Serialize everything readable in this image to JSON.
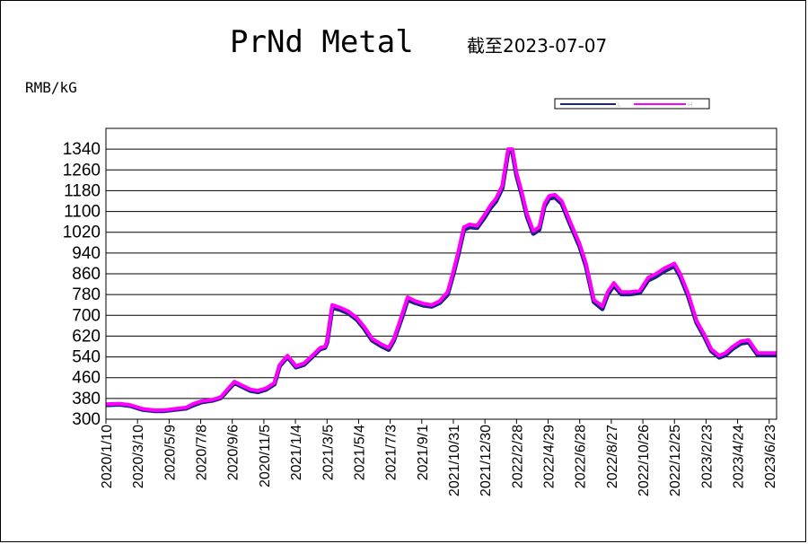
{
  "header": {
    "title": "PrNd Metal",
    "subtitle": "截至2023-07-07",
    "unit": "RMB/kG"
  },
  "colors": {
    "low": "#1a237e",
    "high": "#ff00ff",
    "grid": "#000000"
  },
  "chart_data": {
    "type": "line",
    "ylim": [
      300,
      1340
    ],
    "yticks": [
      300,
      380,
      460,
      540,
      620,
      700,
      780,
      860,
      940,
      1020,
      1100,
      1180,
      1260,
      1340
    ],
    "xlim": [
      "2020-01-10",
      "2023-07-07"
    ],
    "xticks": [
      "2020/1/10",
      "2020/3/10",
      "2020/5/9",
      "2020/7/8",
      "2020/9/6",
      "2020/11/5",
      "2021/1/4",
      "2021/3/5",
      "2021/5/4",
      "2021/7/3",
      "2021/9/1",
      "2021/10/31",
      "2021/12/30",
      "2022/2/28",
      "2022/4/29",
      "2022/6/28",
      "2022/8/27",
      "2022/10/26",
      "2022/12/25",
      "2023/2/23",
      "2023/4/24",
      "2023/6/23"
    ],
    "grid": "horizontal",
    "legend": {
      "placement": "top-right",
      "entries": [
        "L",
        "H"
      ]
    },
    "series": [
      {
        "name": "H",
        "x": [
          "2020-01-10",
          "2020-02-05",
          "2020-02-25",
          "2020-03-20",
          "2020-04-10",
          "2020-04-30",
          "2020-05-20",
          "2020-06-10",
          "2020-06-25",
          "2020-07-10",
          "2020-07-30",
          "2020-08-15",
          "2020-08-30",
          "2020-09-10",
          "2020-09-25",
          "2020-10-10",
          "2020-10-25",
          "2020-11-10",
          "2020-11-25",
          "2020-12-05",
          "2020-12-20",
          "2021-01-05",
          "2021-01-20",
          "2021-02-05",
          "2021-02-20",
          "2021-03-01",
          "2021-03-05",
          "2021-03-15",
          "2021-03-30",
          "2021-04-15",
          "2021-05-01",
          "2021-05-15",
          "2021-05-30",
          "2021-06-15",
          "2021-06-30",
          "2021-07-10",
          "2021-07-25",
          "2021-08-05",
          "2021-08-20",
          "2021-09-05",
          "2021-09-20",
          "2021-10-05",
          "2021-10-20",
          "2021-10-31",
          "2021-11-10",
          "2021-11-20",
          "2021-12-01",
          "2021-12-15",
          "2021-12-30",
          "2022-01-10",
          "2022-01-20",
          "2022-02-01",
          "2022-02-12",
          "2022-02-20",
          "2022-02-28",
          "2022-03-10",
          "2022-03-20",
          "2022-04-01",
          "2022-04-12",
          "2022-04-22",
          "2022-05-01",
          "2022-05-12",
          "2022-05-25",
          "2022-06-10",
          "2022-06-28",
          "2022-07-10",
          "2022-07-25",
          "2022-08-10",
          "2022-08-20",
          "2022-09-01",
          "2022-09-15",
          "2022-10-01",
          "2022-10-20",
          "2022-11-05",
          "2022-11-20",
          "2022-12-05",
          "2022-12-25",
          "2023-01-05",
          "2023-01-20",
          "2023-02-05",
          "2023-02-20",
          "2023-03-05",
          "2023-03-20",
          "2023-04-01",
          "2023-04-15",
          "2023-04-30",
          "2023-05-15",
          "2023-06-01",
          "2023-06-15",
          "2023-06-30",
          "2023-07-07"
        ],
        "values": [
          358,
          360,
          355,
          340,
          335,
          335,
          340,
          345,
          360,
          370,
          375,
          385,
          420,
          445,
          430,
          415,
          410,
          420,
          440,
          510,
          545,
          505,
          515,
          545,
          575,
          580,
          600,
          740,
          730,
          715,
          690,
          655,
          610,
          590,
          575,
          610,
          700,
          770,
          755,
          745,
          740,
          755,
          790,
          870,
          950,
          1040,
          1050,
          1045,
          1090,
          1125,
          1150,
          1200,
          1340,
          1340,
          1250,
          1175,
          1090,
          1025,
          1040,
          1130,
          1160,
          1165,
          1140,
          1060,
          975,
          900,
          760,
          735,
          790,
          825,
          790,
          790,
          795,
          845,
          860,
          880,
          900,
          860,
          785,
          680,
          625,
          570,
          545,
          555,
          580,
          600,
          605,
          555,
          555,
          555,
          555
        ]
      },
      {
        "name": "L",
        "x": [
          "2020-01-10",
          "2020-02-05",
          "2020-02-25",
          "2020-03-20",
          "2020-04-10",
          "2020-04-30",
          "2020-05-20",
          "2020-06-10",
          "2020-06-25",
          "2020-07-10",
          "2020-07-30",
          "2020-08-15",
          "2020-08-30",
          "2020-09-10",
          "2020-09-25",
          "2020-10-10",
          "2020-10-25",
          "2020-11-10",
          "2020-11-25",
          "2020-12-05",
          "2020-12-20",
          "2021-01-05",
          "2021-01-20",
          "2021-02-05",
          "2021-02-20",
          "2021-03-01",
          "2021-03-05",
          "2021-03-15",
          "2021-03-30",
          "2021-04-15",
          "2021-05-01",
          "2021-05-15",
          "2021-05-30",
          "2021-06-15",
          "2021-06-30",
          "2021-07-10",
          "2021-07-25",
          "2021-08-05",
          "2021-08-20",
          "2021-09-05",
          "2021-09-20",
          "2021-10-05",
          "2021-10-20",
          "2021-10-31",
          "2021-11-10",
          "2021-11-20",
          "2021-12-01",
          "2021-12-15",
          "2021-12-30",
          "2022-01-10",
          "2022-01-20",
          "2022-02-01",
          "2022-02-12",
          "2022-02-20",
          "2022-02-28",
          "2022-03-10",
          "2022-03-20",
          "2022-04-01",
          "2022-04-12",
          "2022-04-22",
          "2022-05-01",
          "2022-05-12",
          "2022-05-25",
          "2022-06-10",
          "2022-06-28",
          "2022-07-10",
          "2022-07-25",
          "2022-08-10",
          "2022-08-20",
          "2022-09-01",
          "2022-09-15",
          "2022-10-01",
          "2022-10-20",
          "2022-11-05",
          "2022-11-20",
          "2022-12-05",
          "2022-12-25",
          "2023-01-05",
          "2023-01-20",
          "2023-02-05",
          "2023-02-20",
          "2023-03-05",
          "2023-03-20",
          "2023-04-01",
          "2023-04-15",
          "2023-04-30",
          "2023-05-15",
          "2023-06-01",
          "2023-06-15",
          "2023-06-30",
          "2023-07-07"
        ],
        "values": [
          355,
          357,
          352,
          337,
          332,
          332,
          337,
          342,
          355,
          366,
          372,
          382,
          415,
          440,
          425,
          410,
          405,
          415,
          435,
          505,
          540,
          500,
          510,
          540,
          570,
          575,
          595,
          730,
          722,
          708,
          683,
          648,
          603,
          583,
          568,
          603,
          690,
          760,
          748,
          738,
          734,
          748,
          780,
          860,
          940,
          1030,
          1040,
          1037,
          1080,
          1115,
          1140,
          1190,
          1330,
          1330,
          1240,
          1165,
          1080,
          1015,
          1030,
          1120,
          1150,
          1155,
          1130,
          1050,
          965,
          890,
          752,
          725,
          780,
          815,
          782,
          782,
          787,
          835,
          850,
          870,
          890,
          850,
          775,
          672,
          617,
          563,
          538,
          547,
          572,
          592,
          597,
          548,
          548,
          548,
          548
        ]
      }
    ]
  }
}
